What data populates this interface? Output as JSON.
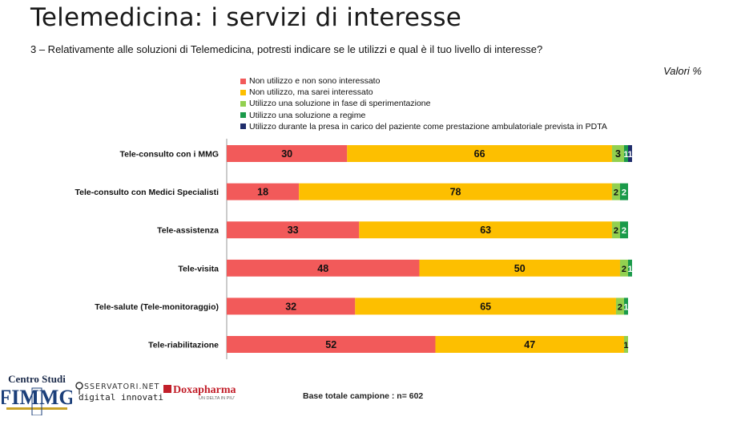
{
  "title": "Telemedicina: i servizi di interesse",
  "question": "3 – Relativamente alle soluzioni di Telemedicina, potresti indicare se le utilizzi e qual è il tuo livello di interesse?",
  "units_note": "Valori %",
  "footer": {
    "sample_base": "Base totale campione : n= 602",
    "logos": {
      "fimmg": "Centro Studi FIMMG",
      "osservatori": "OSSERVATORI.NET digital innovation",
      "doxapharma": "Doxapharma UN DELTA IN PIU'"
    }
  },
  "chart_data": {
    "type": "bar",
    "orientation": "horizontal",
    "stacked": true,
    "normalized_percent": true,
    "xlim": [
      0,
      100
    ],
    "grid": false,
    "legend_position": "top",
    "categories": [
      "Tele-consulto con i MMG",
      "Tele-consulto con Medici Specialisti",
      "Tele-assistenza",
      "Tele-visita",
      "Tele-salute (Tele-monitoraggio)",
      "Tele-riabilitazione"
    ],
    "series": [
      {
        "name": "Non utilizzo e non sono interessato",
        "color": "#f25a5a",
        "values": [
          30,
          18,
          33,
          48,
          32,
          52
        ]
      },
      {
        "name": "Non utilizzo, ma sarei interessato",
        "color": "#fdbf00",
        "values": [
          66,
          78,
          63,
          50,
          65,
          47
        ]
      },
      {
        "name": "Utilizzo una soluzione in fase di sperimentazione",
        "color": "#92d050",
        "values": [
          3,
          2,
          2,
          2,
          2,
          1
        ]
      },
      {
        "name": "Utilizzo una soluzione a regime",
        "color": "#1a9a4a",
        "values": [
          1,
          2,
          2,
          1,
          1,
          0
        ]
      },
      {
        "name": "Utilizzo durante la presa in carico del paziente come prestazione ambulatoriale prevista in PDTA",
        "color": "#1f2d6b",
        "values": [
          1,
          0,
          0,
          0,
          0,
          0
        ]
      }
    ],
    "label_color_dark": "#111111",
    "label_color_light": "#ffffff"
  }
}
